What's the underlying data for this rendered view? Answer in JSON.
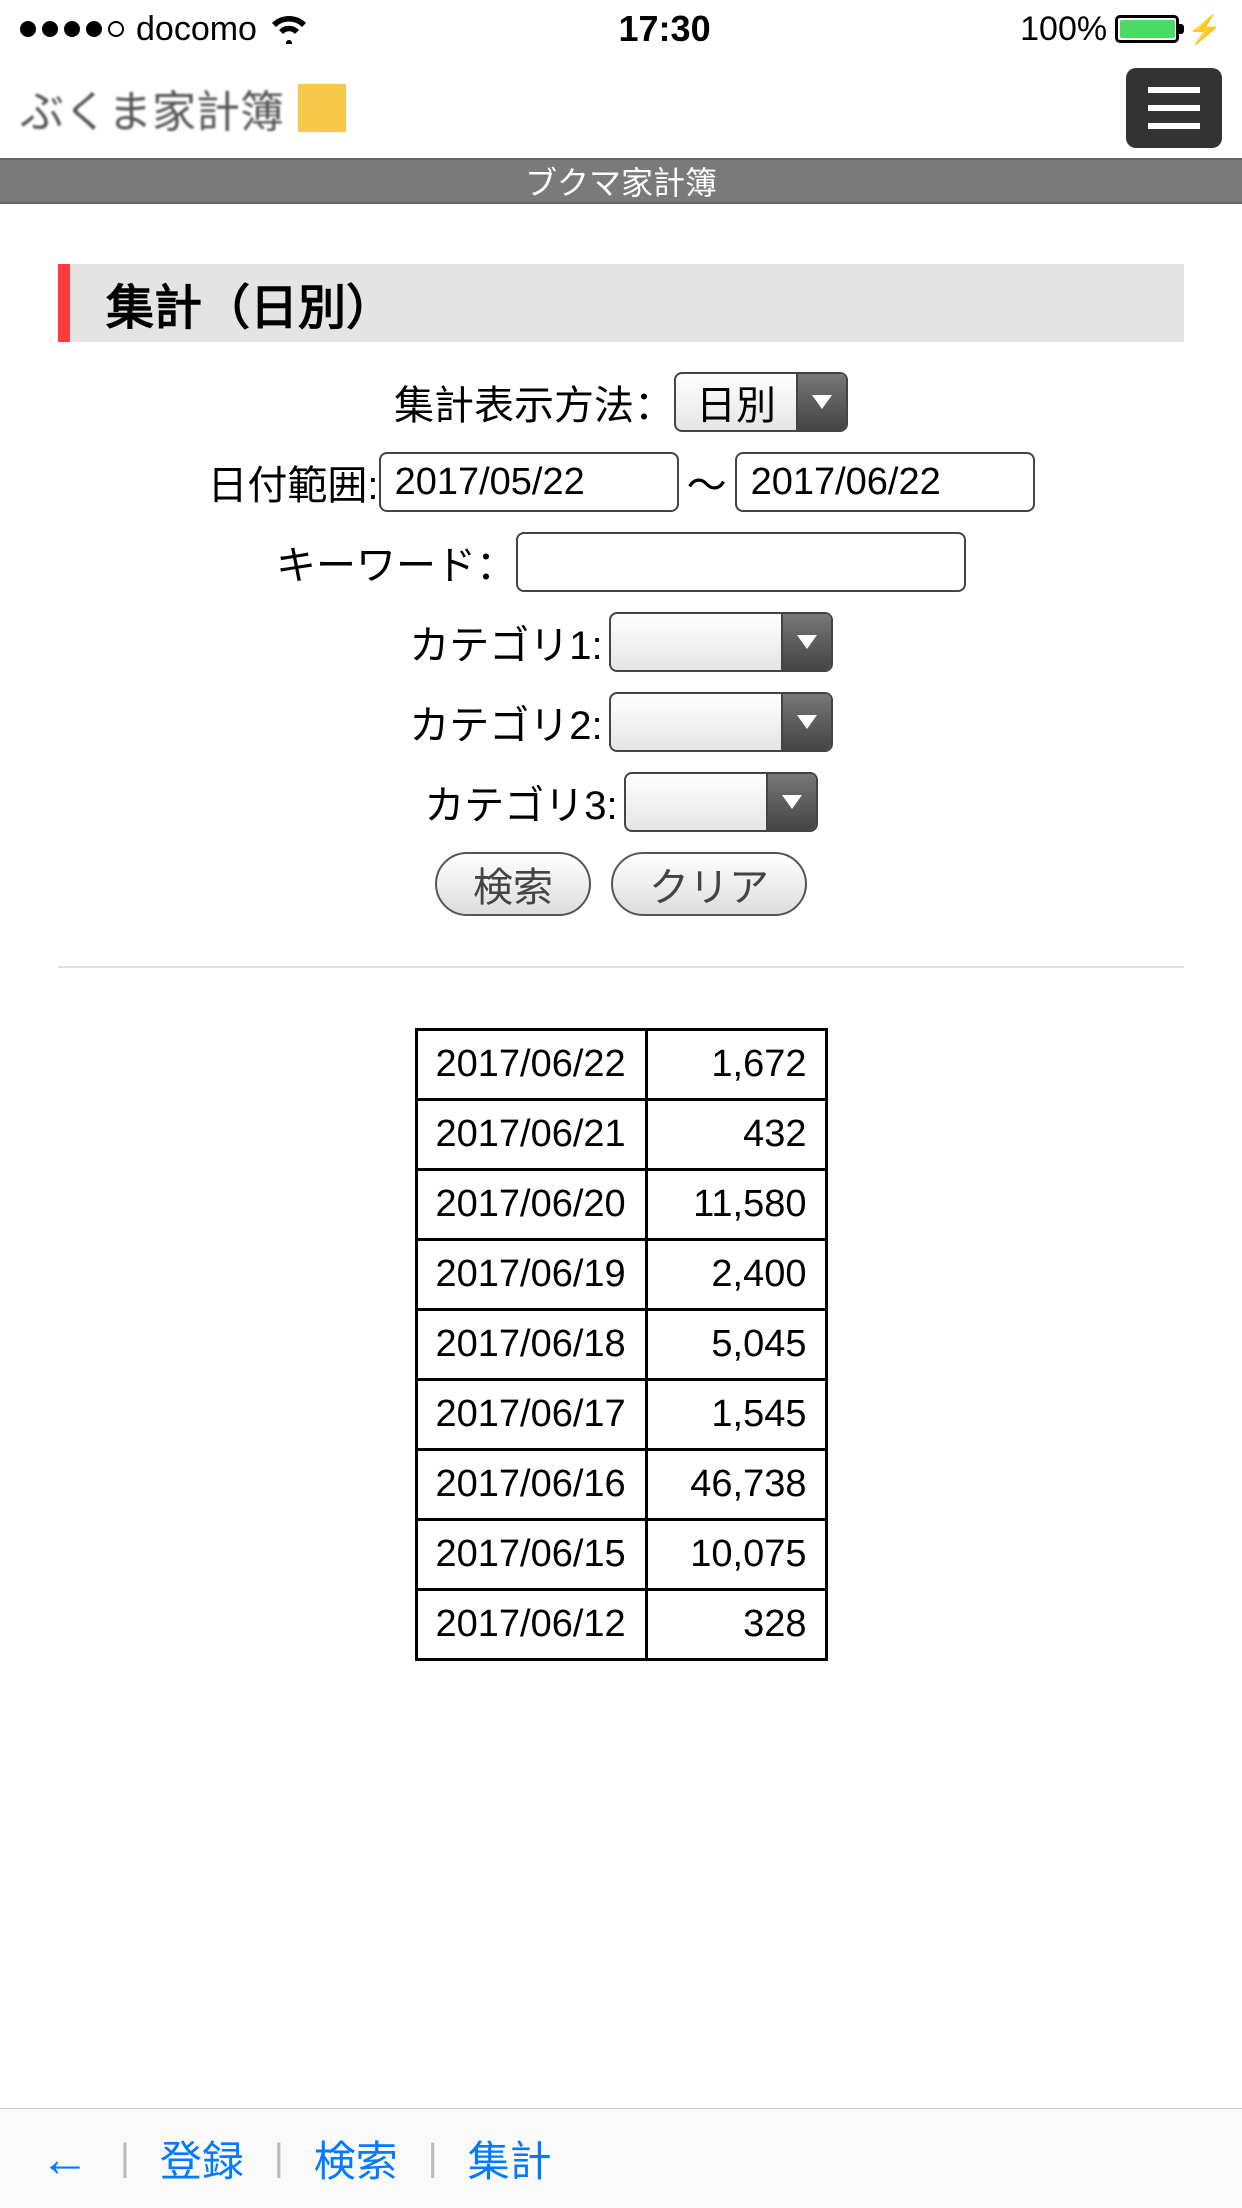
{
  "status": {
    "carrier": "docomo",
    "time": "17:30",
    "battery_pct": "100%"
  },
  "header": {
    "app_title": "ぶくま家計簿",
    "page_title": "ブクマ家計簿"
  },
  "section": {
    "title": "集計（日別）"
  },
  "form": {
    "method_label": "集計表示方法：",
    "method_value": "日別",
    "date_range_label": "日付範囲:",
    "date_from": "2017/05/22",
    "date_sep": "〜",
    "date_to": "2017/06/22",
    "keyword_label": "キーワード：",
    "keyword_value": "",
    "cat1_label": "カテゴリ1:",
    "cat1_value": "",
    "cat2_label": "カテゴリ2:",
    "cat2_value": "",
    "cat3_label": "カテゴリ3:",
    "cat3_value": "",
    "search_btn": "検索",
    "clear_btn": "クリア"
  },
  "table": {
    "rows": [
      {
        "date": "2017/06/22",
        "amount": "1,672"
      },
      {
        "date": "2017/06/21",
        "amount": "432"
      },
      {
        "date": "2017/06/20",
        "amount": "11,580"
      },
      {
        "date": "2017/06/19",
        "amount": "2,400"
      },
      {
        "date": "2017/06/18",
        "amount": "5,045"
      },
      {
        "date": "2017/06/17",
        "amount": "1,545"
      },
      {
        "date": "2017/06/16",
        "amount": "46,738"
      },
      {
        "date": "2017/06/15",
        "amount": "10,075"
      },
      {
        "date": "2017/06/12",
        "amount": "328"
      }
    ]
  },
  "nav": {
    "register": "登録",
    "search": "検索",
    "summary": "集計"
  },
  "colors": {
    "accent_red": "#ff3b3b",
    "accent_yellow": "#f7c948",
    "battery_green": "#4cd964",
    "link_blue": "#007aff",
    "gray_bar": "#7a7a7a",
    "section_bg": "#e4e4e4"
  }
}
